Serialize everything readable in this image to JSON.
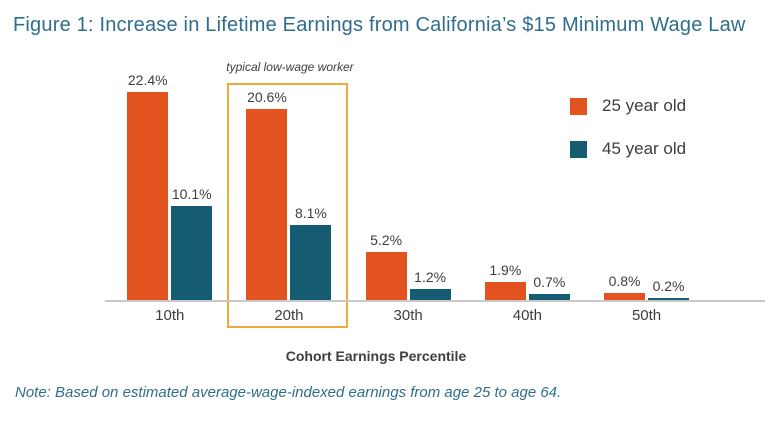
{
  "title": "Figure 1: Increase in Lifetime Earnings from California’s $15 Minimum Wage Law",
  "note": "Note: Based on estimated average-wage-indexed earnings from age 25 to age 64.",
  "colors": {
    "title_text": "#2e6e8c",
    "note_text": "#2e6e8c",
    "label_text": "#3e3e3e",
    "axis_line": "#c9c9c9",
    "highlight_border": "#f0a93c",
    "series_25": "#e2531f",
    "series_45": "#155b72"
  },
  "chart_data": {
    "type": "bar",
    "categories": [
      "10th",
      "20th",
      "30th",
      "40th",
      "50th"
    ],
    "series": [
      {
        "name": "25 year old",
        "color": "#e2531f",
        "values": [
          22.4,
          20.6,
          5.2,
          1.9,
          0.8
        ]
      },
      {
        "name": "45 year old",
        "color": "#155b72",
        "values": [
          10.1,
          8.1,
          1.2,
          0.7,
          0.2
        ]
      }
    ],
    "value_suffix": "%",
    "title": "Figure 1: Increase in Lifetime Earnings from California’s $15 Minimum Wage Law",
    "xlabel": "Cohort Earnings Percentile",
    "ylabel": "",
    "ylim": [
      0,
      24
    ],
    "grid": false,
    "data_labels": true,
    "legend_position": "top-right",
    "highlight": {
      "category": "20th",
      "label": "typical low-wage worker"
    }
  }
}
